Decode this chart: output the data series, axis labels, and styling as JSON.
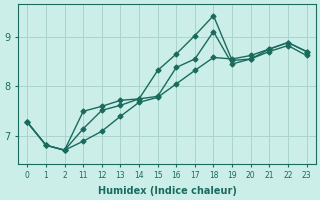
{
  "xlabel": "Humidex (Indice chaleur)",
  "background_color": "#cceee8",
  "grid_color": "#aad4cc",
  "line_color": "#1a6b5e",
  "tick_labels": [
    "0",
    "1",
    "2",
    "11",
    "12",
    "13",
    "14",
    "15",
    "16",
    "17",
    "18",
    "19",
    "20",
    "21",
    "22",
    "23"
  ],
  "ylim": [
    6.45,
    9.65
  ],
  "yticks": [
    7,
    8,
    9
  ],
  "line1_y": [
    7.28,
    6.82,
    6.72,
    6.9,
    7.1,
    7.4,
    7.68,
    7.78,
    8.05,
    8.32,
    8.58,
    8.55,
    8.62,
    8.75,
    8.88,
    8.7
  ],
  "line2_y": [
    7.28,
    6.82,
    6.72,
    7.5,
    7.6,
    7.72,
    7.75,
    7.8,
    8.38,
    8.55,
    9.1,
    8.45,
    8.55,
    8.75,
    8.88,
    8.7
  ],
  "line3_y": [
    7.28,
    6.82,
    6.72,
    7.15,
    7.52,
    7.62,
    7.75,
    8.32,
    8.65,
    9.02,
    9.42,
    8.52,
    8.55,
    8.7,
    8.82,
    8.62
  ]
}
